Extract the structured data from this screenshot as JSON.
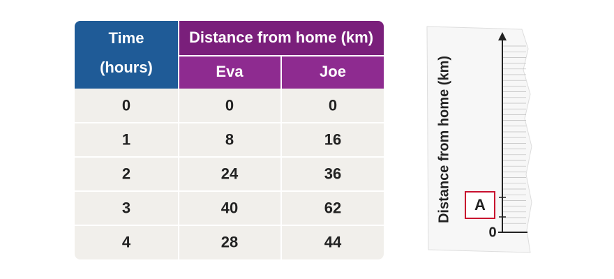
{
  "table": {
    "header": {
      "time": [
        "Time",
        "(hours)"
      ],
      "distance": "Distance from home (km)",
      "eva": "Eva",
      "joe": "Joe"
    },
    "rows": [
      [
        0,
        0,
        0
      ],
      [
        1,
        8,
        16
      ],
      [
        2,
        24,
        36
      ],
      [
        3,
        40,
        62
      ],
      [
        4,
        28,
        44
      ]
    ]
  },
  "graph": {
    "axis_label": "Distance from home (km)",
    "origin_label": "0",
    "box_label": "A"
  }
}
